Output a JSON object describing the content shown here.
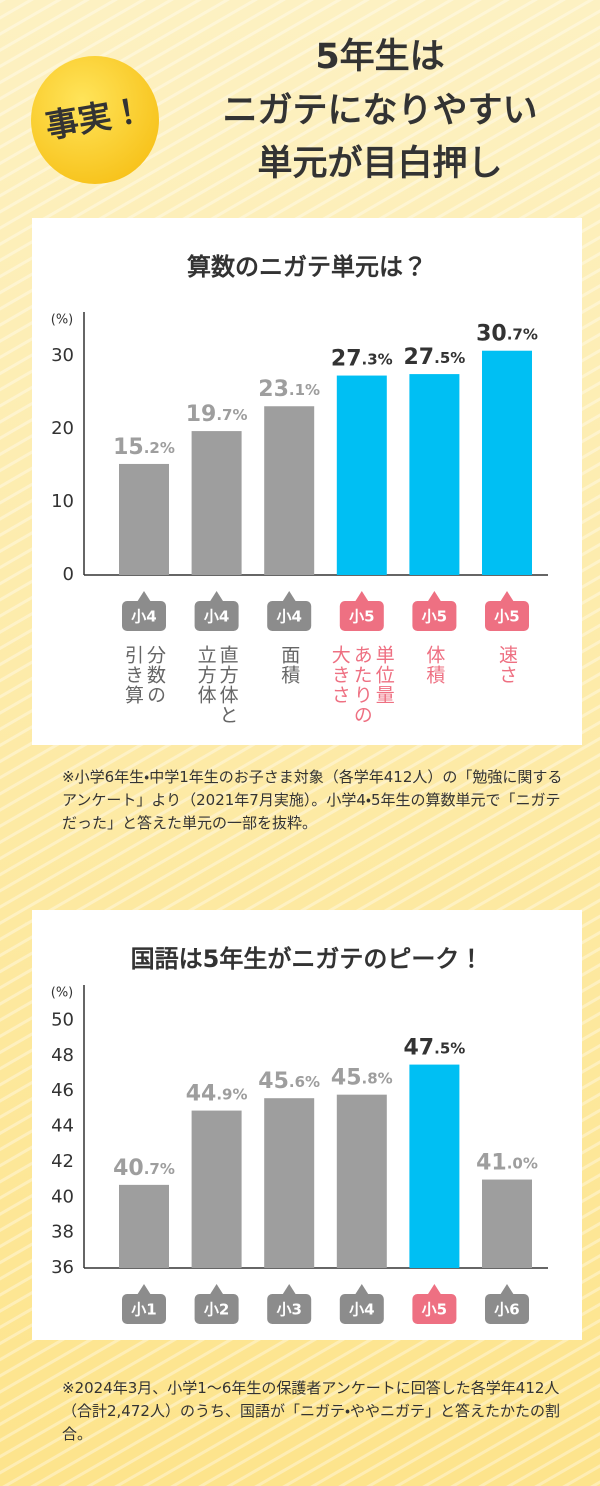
{
  "header": {
    "badge": "事実！",
    "title_lines": [
      "5年生は",
      "ニガテになりやすい",
      "単元が目白押し"
    ]
  },
  "chart_data": [
    {
      "type": "bar",
      "title": "算数のニガテ単元は？",
      "unit": "(%)",
      "categories": [
        "分数の\n引き算",
        "直方体と\n立方体",
        "面積",
        "単位量\nあたりの\n大きさ",
        "体積",
        "速さ"
      ],
      "badges": [
        "小4",
        "小4",
        "小4",
        "小5",
        "小5",
        "小5"
      ],
      "values": [
        15.2,
        19.7,
        23.1,
        27.3,
        27.5,
        30.7
      ],
      "value_labels": [
        "15.2%",
        "19.7%",
        "23.1%",
        "27.3%",
        "27.5%",
        "30.7%"
      ],
      "colors": [
        "#9e9e9e",
        "#9e9e9e",
        "#9e9e9e",
        "#00bff3",
        "#00bff3",
        "#00bff3"
      ],
      "text_colors": [
        "#9e9e9e",
        "#9e9e9e",
        "#9e9e9e",
        "#333333",
        "#333333",
        "#333333"
      ],
      "badge_colors": [
        "#8c8c8c",
        "#8c8c8c",
        "#8c8c8c",
        "#ee7082",
        "#ee7082",
        "#ee7082"
      ],
      "ylim": [
        0,
        36
      ],
      "yticks": [
        0,
        10,
        20,
        30
      ],
      "note": "※小学6年生・中学1年生のお子さま対象（各学年412人）の「勉強に関するアンケート」より（2021年7月実施）。小学4・5年生の算数単元で「ニガテだった」と答えた単元の一部を抜粋。"
    },
    {
      "type": "bar",
      "title": "国語は5年生がニガテのピーク！",
      "unit": "(%)",
      "categories": [
        "小1",
        "小2",
        "小3",
        "小4",
        "小5",
        "小6"
      ],
      "values": [
        40.7,
        44.9,
        45.6,
        45.8,
        47.5,
        41.0
      ],
      "value_labels": [
        "40.7%",
        "44.9%",
        "45.6%",
        "45.8%",
        "47.5%",
        "41.0%"
      ],
      "colors": [
        "#9e9e9e",
        "#9e9e9e",
        "#9e9e9e",
        "#9e9e9e",
        "#00bff3",
        "#9e9e9e"
      ],
      "text_colors": [
        "#9e9e9e",
        "#9e9e9e",
        "#9e9e9e",
        "#9e9e9e",
        "#333333",
        "#9e9e9e"
      ],
      "badge_colors": [
        "#8c8c8c",
        "#8c8c8c",
        "#8c8c8c",
        "#8c8c8c",
        "#ee7082",
        "#8c8c8c"
      ],
      "ylim": [
        36,
        52
      ],
      "yticks": [
        36,
        38,
        40,
        42,
        44,
        46,
        48,
        50
      ],
      "note": "※2024年3月、小学1〜6年生の保護者アンケートに回答した各学年412人（合計2,472人）のうち、国語が「ニガテ・ややニガテ」と答えたかたの割合。"
    }
  ]
}
